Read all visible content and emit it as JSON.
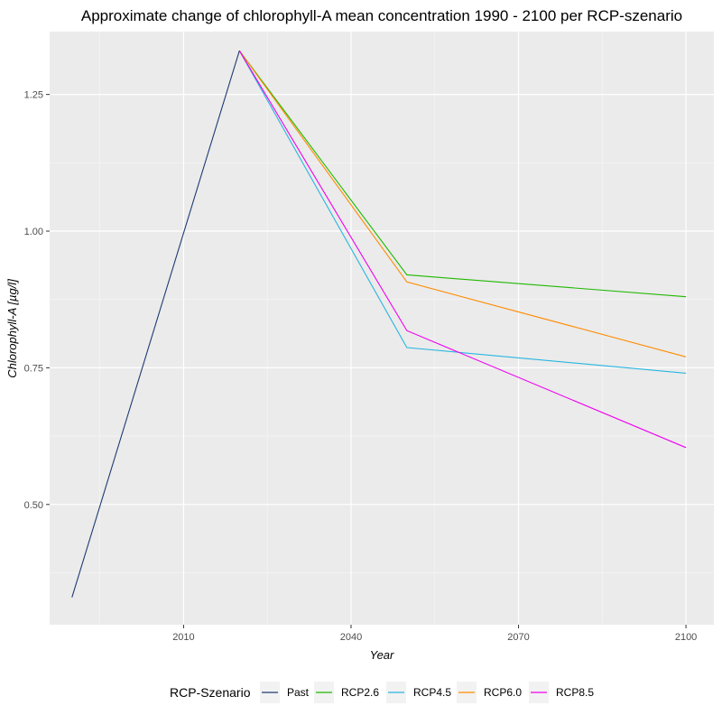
{
  "chart_data": {
    "type": "line",
    "title": "Approximate change of chlorophyll-A mean concentration 1990 - 2100 per RCP-szenario",
    "xlabel": "Year",
    "ylabel": "Chlorophyll-A [µg/l]",
    "xlim": [
      1986,
      2105
    ],
    "ylim": [
      0.28,
      1.365
    ],
    "x_ticks": [
      2010,
      2040,
      2070,
      2100
    ],
    "y_ticks": [
      0.5,
      0.75,
      1.0,
      1.25
    ],
    "y_tick_labels": [
      "0.50",
      "0.75",
      "1.00",
      "1.25"
    ],
    "grid": true,
    "legend_title": "RCP-Szenario",
    "legend_position": "bottom",
    "series": [
      {
        "name": "Past",
        "color": "#1f3b73",
        "x": [
          1990,
          2020
        ],
        "y": [
          0.33,
          1.33
        ]
      },
      {
        "name": "RCP2.6",
        "color": "#1fb800",
        "x": [
          2020,
          2050,
          2100
        ],
        "y": [
          1.33,
          0.92,
          0.88
        ]
      },
      {
        "name": "RCP4.5",
        "color": "#29b6e0",
        "x": [
          2020,
          2050,
          2100
        ],
        "y": [
          1.33,
          0.787,
          0.74
        ]
      },
      {
        "name": "RCP6.0",
        "color": "#ff8c00",
        "x": [
          2020,
          2050,
          2100
        ],
        "y": [
          1.33,
          0.907,
          0.77
        ]
      },
      {
        "name": "RCP8.5",
        "color": "#ee00ee",
        "x": [
          2020,
          2050,
          2100
        ],
        "y": [
          1.33,
          0.818,
          0.604
        ]
      }
    ]
  }
}
